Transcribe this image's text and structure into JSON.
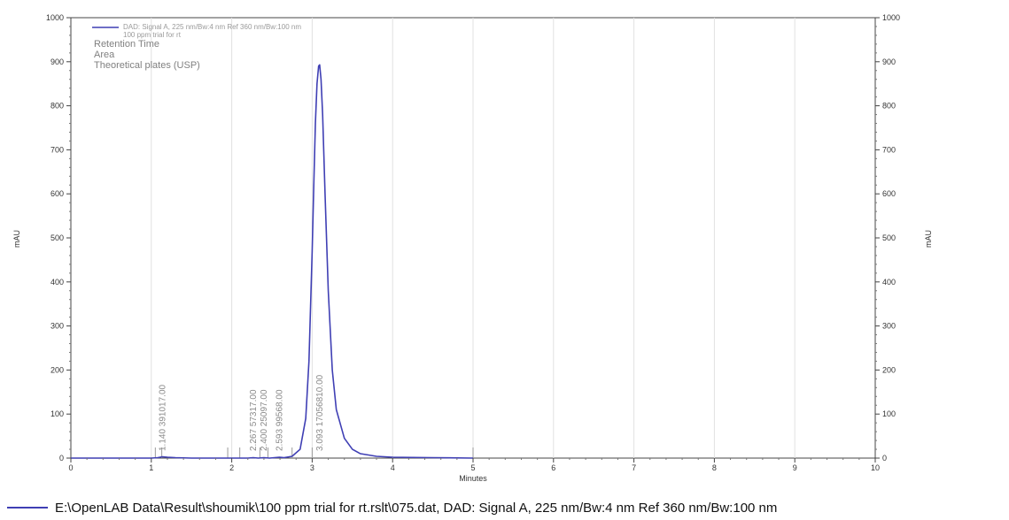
{
  "chart_data": {
    "type": "line",
    "legend": {
      "line1": "DAD: Signal A, 225 nm/Bw:4 nm Ref 360 nm/Bw:100 nm",
      "line2": "100 ppm trial for rt",
      "placement": "top-left"
    },
    "info_lines": [
      "Retention Time",
      "Area",
      "Theoretical plates (USP)"
    ],
    "xlabel": "Minutes",
    "ylabel_left": "mAU",
    "ylabel_right": "mAU",
    "xlim": [
      0,
      10
    ],
    "ylim": [
      0,
      1000
    ],
    "x_ticks": [
      0,
      1,
      2,
      3,
      4,
      5,
      6,
      7,
      8,
      9,
      10
    ],
    "y_ticks": [
      0,
      100,
      200,
      300,
      400,
      500,
      600,
      700,
      800,
      900,
      1000
    ],
    "grid": {
      "vertical": true,
      "horizontal": false
    },
    "series": [
      {
        "name": "DAD: Signal A, 225 nm/Bw:4 nm Ref 360 nm/Bw:100 nm",
        "color": "#3f3fb4",
        "x": [
          0.0,
          0.5,
          1.0,
          1.08,
          1.14,
          1.2,
          1.3,
          1.5,
          2.0,
          2.2,
          2.267,
          2.33,
          2.4,
          2.47,
          2.593,
          2.65,
          2.75,
          2.85,
          2.92,
          2.96,
          3.0,
          3.02,
          3.04,
          3.06,
          3.08,
          3.093,
          3.11,
          3.13,
          3.16,
          3.2,
          3.25,
          3.3,
          3.4,
          3.5,
          3.6,
          3.8,
          4.0,
          4.5,
          5.0
        ],
        "y": [
          0,
          0,
          0,
          1,
          3,
          2,
          1,
          0,
          0,
          0,
          1,
          0,
          1,
          0,
          2,
          1,
          4,
          20,
          90,
          220,
          470,
          620,
          760,
          850,
          890,
          893,
          860,
          780,
          600,
          380,
          200,
          110,
          45,
          20,
          10,
          4,
          2,
          1,
          0
        ]
      }
    ],
    "peak_labels": [
      {
        "x": 1.14,
        "text": "1.140  391017.00"
      },
      {
        "x": 2.267,
        "text": "2.267  57317.00"
      },
      {
        "x": 2.4,
        "text": "2.400  25097.00"
      },
      {
        "x": 2.593,
        "text": "2.593  99568.00"
      },
      {
        "x": 3.093,
        "text": "3.093  17056810.00"
      }
    ],
    "integration_marks": [
      1.05,
      1.13,
      1.95,
      2.1,
      2.35,
      2.45,
      2.75,
      3.0,
      5.0
    ]
  },
  "footer": {
    "text": "E:\\OpenLAB Data\\Result\\shoumik\\100 ppm trial for rt.rslt\\075.dat, DAD: Signal A, 225 nm/Bw:4 nm Ref 360 nm/Bw:100 nm",
    "line_color": "#3f3fb4"
  }
}
